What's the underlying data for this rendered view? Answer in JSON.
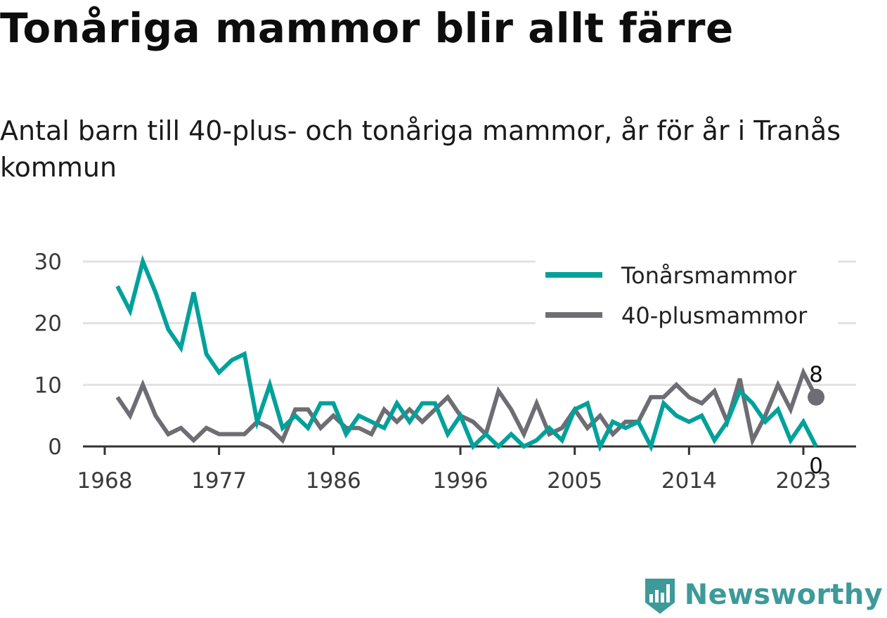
{
  "title": "Tonåriga mammor blir allt färre",
  "subtitle": "Antal barn till 40-plus- och tonåriga mammor, år för år i Tranås kommun",
  "brand": {
    "name": "Newsworthy",
    "logo_icon": "newsworthy-logo-icon",
    "color": "#3d9a99"
  },
  "chart_data": {
    "type": "line",
    "title": "Tonåriga mammor blir allt färre",
    "subtitle": "Antal barn till 40-plus- och tonåriga mammor, år för år i Tranås kommun",
    "xlabel": "",
    "ylabel": "",
    "x": [
      1969,
      1970,
      1971,
      1972,
      1973,
      1974,
      1975,
      1976,
      1977,
      1978,
      1979,
      1980,
      1981,
      1982,
      1983,
      1984,
      1985,
      1986,
      1987,
      1988,
      1989,
      1990,
      1991,
      1992,
      1993,
      1994,
      1995,
      1996,
      1997,
      1998,
      1999,
      2000,
      2001,
      2002,
      2003,
      2004,
      2005,
      2006,
      2007,
      2008,
      2009,
      2010,
      2011,
      2012,
      2013,
      2014,
      2015,
      2016,
      2017,
      2018,
      2019,
      2020,
      2021,
      2022,
      2023,
      2024
    ],
    "x_ticks": [
      "1968",
      "1977",
      "1986",
      "1996",
      "2005",
      "2014",
      "2023"
    ],
    "x_range": [
      1968,
      2026
    ],
    "y_ticks": [
      "0",
      "10",
      "20",
      "30"
    ],
    "ylim": [
      0,
      30
    ],
    "grid": true,
    "legend_position": "top-right",
    "series": [
      {
        "name": "Tonårsmammor",
        "color": "#00a19a",
        "values": [
          26,
          22,
          30,
          25,
          19,
          16,
          25,
          15,
          12,
          14,
          15,
          4,
          10,
          3,
          5,
          3,
          7,
          7,
          2,
          5,
          4,
          3,
          7,
          4,
          7,
          7,
          2,
          5,
          0,
          2,
          0,
          2,
          0,
          1,
          3,
          1,
          6,
          7,
          0,
          4,
          3,
          4,
          0,
          7,
          5,
          4,
          5,
          1,
          4,
          9,
          7,
          4,
          6,
          1,
          4,
          0
        ]
      },
      {
        "name": "40-plusmammor",
        "color": "#6e6d73",
        "values": [
          8,
          5,
          10,
          5,
          2,
          3,
          1,
          3,
          2,
          2,
          2,
          4,
          3,
          1,
          6,
          6,
          3,
          5,
          3,
          3,
          2,
          6,
          4,
          6,
          4,
          6,
          8,
          5,
          4,
          2,
          9,
          6,
          2,
          7,
          2,
          3,
          6,
          3,
          5,
          2,
          4,
          4,
          8,
          8,
          10,
          8,
          7,
          9,
          4,
          11,
          1,
          5,
          10,
          6,
          12,
          8
        ]
      }
    ],
    "end_labels": [
      "8",
      "0"
    ]
  }
}
